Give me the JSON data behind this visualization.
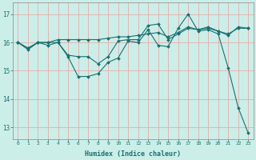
{
  "xlabel": "Humidex (Indice chaleur)",
  "bg_color": "#cceee8",
  "grid_color": "#e8aaaa",
  "line_color": "#1a7070",
  "xlim": [
    -0.5,
    23.5
  ],
  "ylim": [
    12.6,
    17.4
  ],
  "yticks": [
    13,
    14,
    15,
    16,
    17
  ],
  "xticks": [
    0,
    1,
    2,
    3,
    4,
    5,
    6,
    7,
    8,
    9,
    10,
    11,
    12,
    13,
    14,
    15,
    16,
    17,
    18,
    19,
    20,
    21,
    22,
    23
  ],
  "line1_x": [
    0,
    1,
    2,
    3,
    4,
    5,
    6,
    7,
    8,
    9,
    10,
    11,
    12,
    13,
    14,
    15,
    16,
    17,
    18,
    19,
    20,
    21,
    22,
    23
  ],
  "line1_y": [
    16.0,
    15.8,
    16.0,
    16.0,
    16.1,
    16.1,
    16.1,
    16.1,
    16.1,
    16.15,
    16.2,
    16.2,
    16.25,
    16.3,
    16.35,
    16.2,
    16.35,
    16.55,
    16.45,
    16.55,
    16.4,
    16.3,
    16.5,
    16.5
  ],
  "line2_x": [
    0,
    1,
    2,
    3,
    4,
    5,
    6,
    7,
    8,
    9,
    10,
    11,
    12,
    13,
    14,
    15,
    16,
    17,
    18,
    19,
    20,
    21,
    22,
    23
  ],
  "line2_y": [
    16.0,
    15.8,
    16.0,
    16.0,
    16.0,
    15.55,
    15.5,
    15.5,
    15.25,
    15.5,
    16.05,
    16.1,
    16.1,
    16.6,
    16.65,
    16.1,
    16.3,
    16.5,
    16.45,
    16.5,
    16.4,
    16.25,
    16.55,
    16.5
  ],
  "line3_x": [
    0,
    1,
    2,
    3,
    4,
    5,
    6,
    7,
    8,
    9,
    10,
    11,
    12,
    13,
    14,
    15,
    16,
    17,
    18,
    19,
    20,
    21,
    22,
    23
  ],
  "line3_y": [
    16.0,
    15.75,
    16.0,
    15.9,
    16.0,
    15.5,
    14.8,
    14.8,
    14.9,
    15.3,
    15.45,
    16.05,
    16.0,
    16.45,
    15.9,
    15.85,
    16.5,
    17.0,
    16.4,
    16.45,
    16.3,
    15.1,
    13.7,
    12.8
  ],
  "figsize": [
    3.2,
    2.0
  ],
  "dpi": 100
}
